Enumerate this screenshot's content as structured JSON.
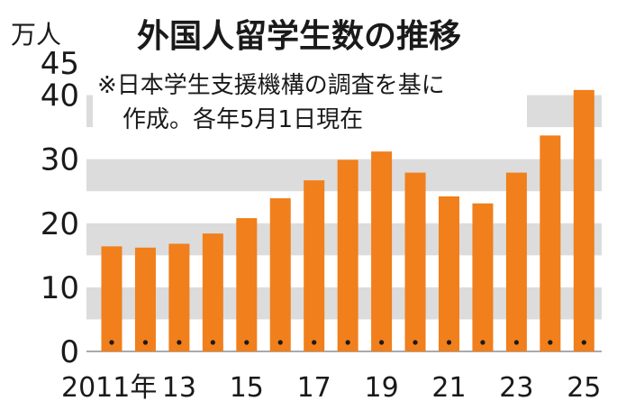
{
  "chart_data": {
    "type": "bar",
    "title": "外国人留学生数の推移",
    "unit_label": "万人",
    "note_lines": [
      "※日本学生支援機構の調査を基に",
      "作成。各年5月1日現在"
    ],
    "categories": [
      "2011",
      "2012",
      "2013",
      "2014",
      "2015",
      "2016",
      "2017",
      "2018",
      "2019",
      "2020",
      "2021",
      "2022",
      "2023",
      "2024",
      "2025"
    ],
    "x_tick_labels": [
      {
        "category": "2011",
        "label": "2011年"
      },
      {
        "category": "2013",
        "label": "13"
      },
      {
        "category": "2015",
        "label": "15"
      },
      {
        "category": "2017",
        "label": "17"
      },
      {
        "category": "2019",
        "label": "19"
      },
      {
        "category": "2021",
        "label": "21"
      },
      {
        "category": "2023",
        "label": "23"
      },
      {
        "category": "2025",
        "label": "25"
      }
    ],
    "values": [
      16.4,
      16.2,
      16.8,
      18.4,
      20.8,
      23.9,
      26.7,
      29.9,
      31.2,
      27.9,
      24.2,
      23.1,
      27.9,
      33.7,
      40.8
    ],
    "y_ticks": [
      0,
      10,
      20,
      30,
      40,
      45
    ],
    "ylim": [
      0,
      45
    ],
    "bar_color": "#f07f1c",
    "band_color": "#dcdcdc",
    "grid": true
  }
}
